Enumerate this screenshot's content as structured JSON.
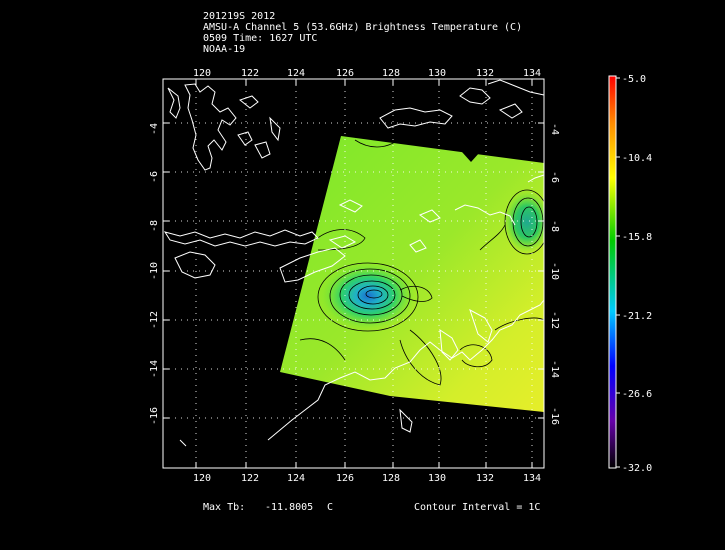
{
  "header": {
    "line1": "201219S 2012",
    "line2": "AMSU-A Channel 5 (53.6GHz) Brightness Temperature (C)",
    "line3": "0509 Time: 1627 UTC",
    "line4": "NOAA-19"
  },
  "map": {
    "lon_labels": [
      "120",
      "122",
      "124",
      "126",
      "128",
      "130",
      "132",
      "134"
    ],
    "lat_labels": [
      "-4",
      "-6",
      "-8",
      "-10",
      "-12",
      "-14",
      "-16"
    ]
  },
  "colorbar": {
    "labels": [
      "-5.0",
      "-10.4",
      "-15.8",
      "-21.2",
      "-26.6",
      "-32.0"
    ],
    "colors": [
      "#ff0000",
      "#ff8c00",
      "#ffff00",
      "#00cc00",
      "#00ccff",
      "#0000ff",
      "#6600aa",
      "#000000"
    ]
  },
  "footer": {
    "max_tb_label": "Max Tb:",
    "max_tb_value": "-11.8005",
    "max_tb_unit": "C",
    "contour_label": "Contour Interval = 1C"
  }
}
